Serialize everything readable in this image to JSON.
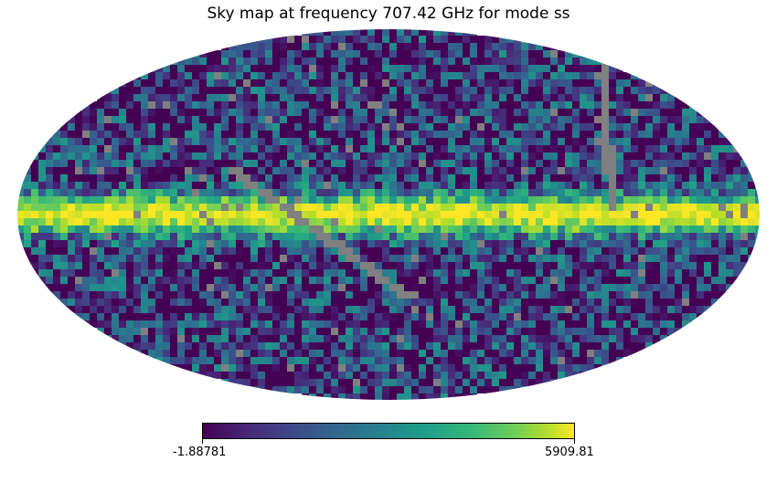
{
  "title": "Sky map at frequency 707.42 GHz for mode ss",
  "map": {
    "projection": "mollweide",
    "colormap": "viridis",
    "masked_color": "#808080",
    "background": "#ffffff"
  },
  "colorbar": {
    "min_label": "-1.88781",
    "max_label": "5909.81",
    "min": -1.88781,
    "max": 5909.81
  }
}
